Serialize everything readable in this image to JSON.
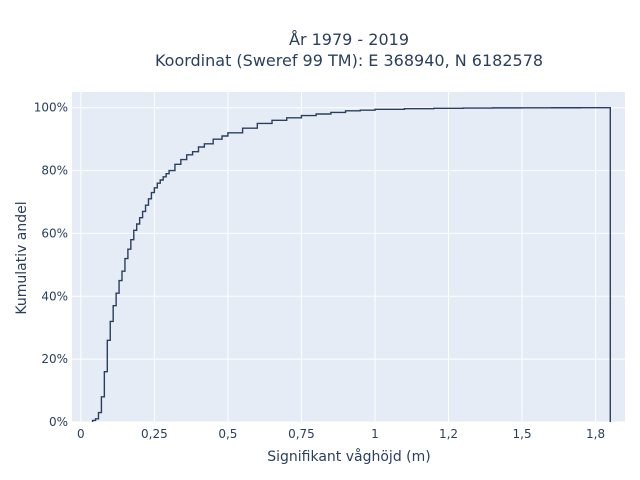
{
  "chart_data": {
    "type": "line",
    "line_shape": "step",
    "title_lines": [
      "År 1979 - 2019",
      "Koordinat (Sweref 99 TM): E 368940, N 6182578"
    ],
    "xlabel": "Signifikant våghöjd (m)",
    "ylabel": "Kumulativ andel",
    "xlim": [
      -0.03,
      1.85
    ],
    "ylim": [
      0,
      1.05
    ],
    "x_ticks": [
      {
        "value": 0,
        "label": "0"
      },
      {
        "value": 0.25,
        "label": "0,25"
      },
      {
        "value": 0.5,
        "label": "0,5"
      },
      {
        "value": 0.75,
        "label": "0,75"
      },
      {
        "value": 1,
        "label": "1"
      },
      {
        "value": 1.25,
        "label": "1,2"
      },
      {
        "value": 1.5,
        "label": "1,5"
      },
      {
        "value": 1.75,
        "label": "1,8"
      }
    ],
    "y_ticks": [
      {
        "value": 0,
        "label": "0%"
      },
      {
        "value": 0.2,
        "label": "20%"
      },
      {
        "value": 0.4,
        "label": "40%"
      },
      {
        "value": 0.6,
        "label": "60%"
      },
      {
        "value": 0.8,
        "label": "80%"
      },
      {
        "value": 1,
        "label": "100%"
      }
    ],
    "grid": true,
    "colors": {
      "line": "#2a3f5f",
      "plot_background": "#e5ecf6",
      "grid": "#ffffff",
      "text": "#2a3f5f"
    },
    "series": [
      {
        "x": [
          0.04,
          0.05,
          0.06,
          0.07,
          0.08,
          0.09,
          0.1,
          0.11,
          0.12,
          0.13,
          0.14,
          0.15,
          0.16,
          0.17,
          0.18,
          0.19,
          0.2,
          0.21,
          0.22,
          0.23,
          0.24,
          0.25,
          0.26,
          0.27,
          0.28,
          0.29,
          0.3,
          0.32,
          0.34,
          0.36,
          0.38,
          0.4,
          0.42,
          0.45,
          0.48,
          0.5,
          0.55,
          0.6,
          0.65,
          0.7,
          0.75,
          0.8,
          0.85,
          0.9,
          0.95,
          1.0,
          1.1,
          1.2,
          1.3,
          1.4,
          1.5,
          1.6,
          1.7,
          1.8
        ],
        "y": [
          0.005,
          0.01,
          0.03,
          0.08,
          0.16,
          0.26,
          0.32,
          0.37,
          0.41,
          0.45,
          0.48,
          0.52,
          0.55,
          0.58,
          0.61,
          0.63,
          0.65,
          0.67,
          0.69,
          0.71,
          0.73,
          0.745,
          0.76,
          0.77,
          0.78,
          0.79,
          0.8,
          0.82,
          0.835,
          0.85,
          0.86,
          0.875,
          0.885,
          0.9,
          0.91,
          0.92,
          0.935,
          0.95,
          0.96,
          0.968,
          0.975,
          0.98,
          0.985,
          0.99,
          0.992,
          0.995,
          0.997,
          0.998,
          0.999,
          0.9995,
          0.9998,
          0.9999,
          1.0,
          1.0
        ]
      }
    ]
  }
}
